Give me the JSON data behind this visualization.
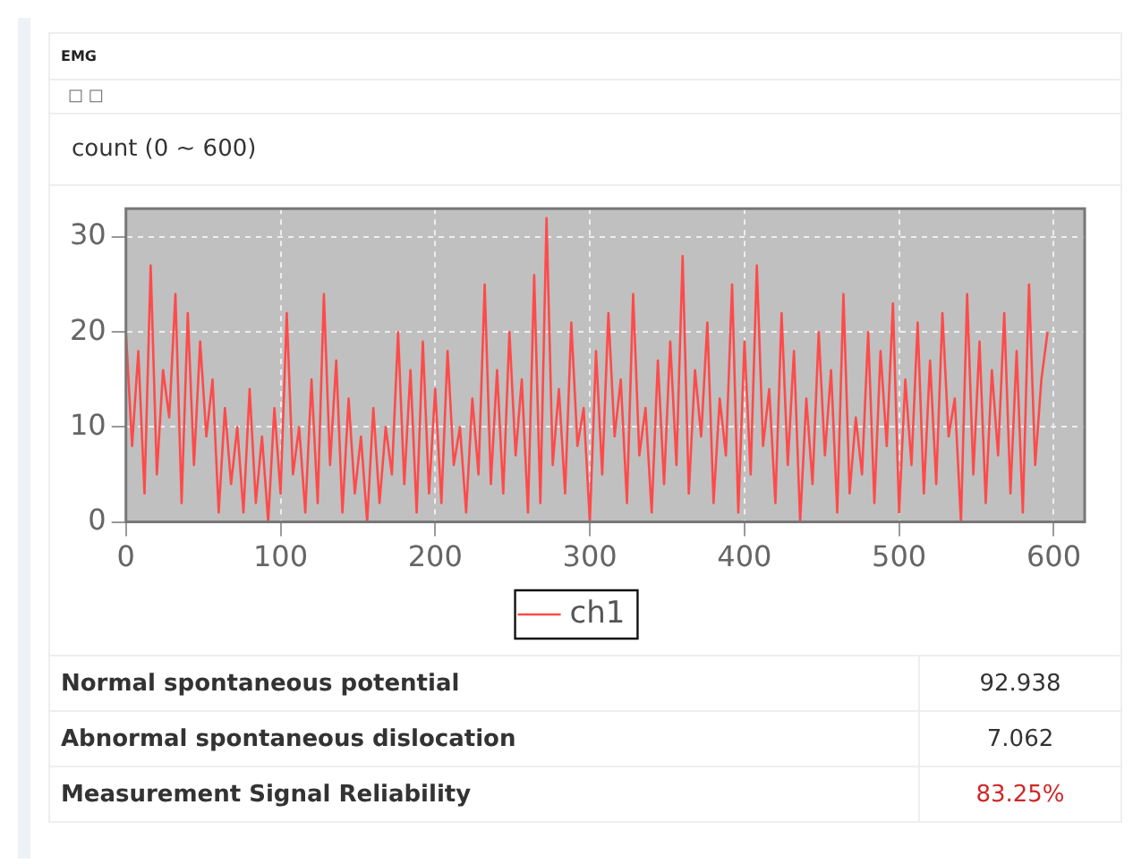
{
  "chart_data": {
    "type": "line",
    "title": "EMG",
    "subtitle": "□ □",
    "annotations": [
      "count (0 ~ 600)",
      "Normal spontaneous potential",
      "92.938",
      "Abnormal spontaneous dislocation",
      "7.062",
      "Measurement Signal Reliability",
      "83.25%"
    ],
    "x": [
      0,
      4,
      8,
      12,
      16,
      20,
      24,
      28,
      32,
      36,
      40,
      44,
      48,
      52,
      56,
      60,
      64,
      68,
      72,
      76,
      80,
      84,
      88,
      92,
      96,
      100,
      104,
      108,
      112,
      116,
      120,
      124,
      128,
      132,
      136,
      140,
      144,
      148,
      152,
      156,
      160,
      164,
      168,
      172,
      176,
      180,
      184,
      188,
      192,
      196,
      200,
      204,
      208,
      212,
      216,
      220,
      224,
      228,
      232,
      236,
      240,
      244,
      248,
      252,
      256,
      260,
      264,
      268,
      272,
      276,
      280,
      284,
      288,
      292,
      296,
      300,
      304,
      308,
      312,
      316,
      320,
      324,
      328,
      332,
      336,
      340,
      344,
      348,
      352,
      356,
      360,
      364,
      368,
      372,
      376,
      380,
      384,
      388,
      392,
      396,
      400,
      404,
      408,
      412,
      416,
      420,
      424,
      428,
      432,
      436,
      440,
      444,
      448,
      452,
      456,
      460,
      464,
      468,
      472,
      476,
      480,
      484,
      488,
      492,
      496,
      500,
      504,
      508,
      512,
      516,
      520,
      524,
      528,
      532,
      536,
      540,
      544,
      548,
      552,
      556,
      560,
      564,
      568,
      572,
      576,
      580,
      584,
      588,
      592,
      596
    ],
    "series": [
      {
        "name": "ch1",
        "color": "#ff4a4a",
        "values": [
          20,
          8,
          18,
          3,
          27,
          5,
          16,
          11,
          24,
          2,
          22,
          6,
          19,
          9,
          15,
          1,
          12,
          4,
          10,
          1,
          14,
          2,
          9,
          0,
          12,
          3,
          22,
          5,
          10,
          1,
          15,
          2,
          24,
          6,
          17,
          1,
          13,
          3,
          9,
          0,
          12,
          2,
          10,
          5,
          20,
          4,
          16,
          1,
          19,
          3,
          14,
          2,
          18,
          6,
          10,
          1,
          13,
          5,
          25,
          4,
          16,
          3,
          20,
          7,
          15,
          1,
          26,
          2,
          32,
          6,
          14,
          3,
          21,
          8,
          12,
          0,
          18,
          5,
          22,
          9,
          15,
          2,
          24,
          7,
          12,
          1,
          17,
          4,
          19,
          6,
          28,
          3,
          16,
          9,
          21,
          2,
          13,
          7,
          25,
          1,
          19,
          5,
          27,
          8,
          14,
          2,
          22,
          6,
          18,
          0,
          13,
          4,
          20,
          7,
          16,
          1,
          24,
          3,
          11,
          5,
          20,
          2,
          18,
          8,
          23,
          1,
          15,
          6,
          21,
          3,
          17,
          4,
          22,
          9,
          13,
          0,
          24,
          5,
          19,
          2,
          16,
          7,
          22,
          3,
          18,
          1,
          25,
          6,
          15,
          20
        ]
      }
    ],
    "xlim": [
      0,
      620
    ],
    "ylim": [
      0,
      33
    ],
    "xticks": [
      0,
      100,
      200,
      300,
      400,
      500,
      600
    ],
    "yticks": [
      0,
      10,
      20,
      30
    ],
    "grid": true,
    "legend": "bottom",
    "marker": "none",
    "line_style": "solid"
  }
}
